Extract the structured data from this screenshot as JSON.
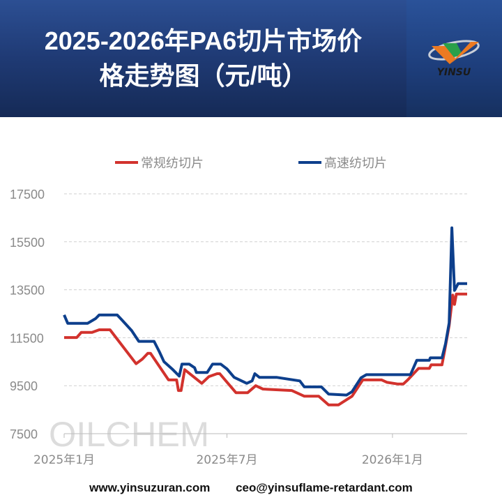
{
  "header": {
    "title_line1": "2025-2026年PA6切片市场价",
    "title_line2": "格走势图（元/吨）",
    "logo_text": "YINSU",
    "watermark_text": "OILCHEM"
  },
  "footer": {
    "website": "www.yinsuzuran.com",
    "email": "ceo@yinsuflame-retardant.com"
  },
  "chart_data": {
    "type": "line",
    "title": "",
    "xlabel": "",
    "ylabel": "",
    "ylim": [
      7500,
      17500
    ],
    "yticks": [
      "7500",
      "9500",
      "11500",
      "13500",
      "15500",
      "17500"
    ],
    "xlim": [
      "2025-01-01",
      "2026-03-25"
    ],
    "xticks": [
      {
        "date": "2025-01-01",
        "label": "2025年1月"
      },
      {
        "date": "2025-07-01",
        "label": "2025年7月"
      },
      {
        "date": "2026-01-01",
        "label": "2026年1月"
      }
    ],
    "grid": "horizontal dashed",
    "legend_position": "top",
    "series": [
      {
        "name": "常规纺切片",
        "color": "#d2322d",
        "points": [
          [
            "2025-01-01",
            11510
          ],
          [
            "2025-01-15",
            11510
          ],
          [
            "2025-01-20",
            11720
          ],
          [
            "2025-02-01",
            11720
          ],
          [
            "2025-02-09",
            11830
          ],
          [
            "2025-02-21",
            11830
          ],
          [
            "2025-03-22",
            10415
          ],
          [
            "2025-03-29",
            10610
          ],
          [
            "2025-04-04",
            10850
          ],
          [
            "2025-04-07",
            10850
          ],
          [
            "2025-04-27",
            9740
          ],
          [
            "2025-05-06",
            9740
          ],
          [
            "2025-05-08",
            9300
          ],
          [
            "2025-05-11",
            9300
          ],
          [
            "2025-05-15",
            10170
          ],
          [
            "2025-06-03",
            9600
          ],
          [
            "2025-06-11",
            9880
          ],
          [
            "2025-06-20",
            10000
          ],
          [
            "2025-06-23",
            10000
          ],
          [
            "2025-07-11",
            9210
          ],
          [
            "2025-07-24",
            9210
          ],
          [
            "2025-08-02",
            9500
          ],
          [
            "2025-08-10",
            9360
          ],
          [
            "2025-09-11",
            9300
          ],
          [
            "2025-09-25",
            9060
          ],
          [
            "2025-10-11",
            9060
          ],
          [
            "2025-10-22",
            8700
          ],
          [
            "2025-11-02",
            8700
          ],
          [
            "2025-11-17",
            9060
          ],
          [
            "2025-11-29",
            9740
          ],
          [
            "2025-12-20",
            9740
          ],
          [
            "2025-12-26",
            9640
          ],
          [
            "2026-01-07",
            9570
          ],
          [
            "2026-01-13",
            9570
          ],
          [
            "2026-01-18",
            9740
          ],
          [
            "2026-01-30",
            10220
          ],
          [
            "2026-02-11",
            10220
          ],
          [
            "2026-02-13",
            10370
          ],
          [
            "2026-02-25",
            10370
          ],
          [
            "2026-02-28",
            10950
          ],
          [
            "2026-03-05",
            12010
          ],
          [
            "2026-03-09",
            13280
          ],
          [
            "2026-03-11",
            12890
          ],
          [
            "2026-03-13",
            13320
          ],
          [
            "2026-03-25",
            13320
          ]
        ]
      },
      {
        "name": "高速纺切片",
        "color": "#0d3f8c",
        "points": [
          [
            "2025-01-01",
            12450
          ],
          [
            "2025-01-05",
            12100
          ],
          [
            "2025-01-27",
            12100
          ],
          [
            "2025-02-05",
            12300
          ],
          [
            "2025-02-09",
            12450
          ],
          [
            "2025-03-01",
            12450
          ],
          [
            "2025-03-06",
            12250
          ],
          [
            "2025-03-17",
            11800
          ],
          [
            "2025-03-25",
            11350
          ],
          [
            "2025-04-11",
            11350
          ],
          [
            "2025-04-17",
            10900
          ],
          [
            "2025-04-22",
            10500
          ],
          [
            "2025-05-01",
            10200
          ],
          [
            "2025-05-09",
            9900
          ],
          [
            "2025-05-12",
            10400
          ],
          [
            "2025-05-20",
            10400
          ],
          [
            "2025-05-26",
            10250
          ],
          [
            "2025-05-28",
            10050
          ],
          [
            "2025-06-09",
            10050
          ],
          [
            "2025-06-15",
            10400
          ],
          [
            "2025-06-24",
            10400
          ],
          [
            "2025-07-01",
            10200
          ],
          [
            "2025-07-09",
            9850
          ],
          [
            "2025-07-23",
            9600
          ],
          [
            "2025-07-29",
            9700
          ],
          [
            "2025-08-01",
            10000
          ],
          [
            "2025-08-06",
            9850
          ],
          [
            "2025-08-25",
            9850
          ],
          [
            "2025-09-20",
            9700
          ],
          [
            "2025-09-25",
            9450
          ],
          [
            "2025-10-14",
            9450
          ],
          [
            "2025-10-22",
            9150
          ],
          [
            "2025-11-11",
            9110
          ],
          [
            "2025-11-17",
            9250
          ],
          [
            "2025-11-27",
            9830
          ],
          [
            "2025-12-03",
            9960
          ],
          [
            "2026-01-21",
            9960
          ],
          [
            "2026-01-28",
            10560
          ],
          [
            "2026-02-11",
            10560
          ],
          [
            "2026-02-12",
            10660
          ],
          [
            "2026-02-25",
            10660
          ],
          [
            "2026-03-01",
            11250
          ],
          [
            "2026-03-05",
            12120
          ],
          [
            "2026-03-08",
            16080
          ],
          [
            "2026-03-11",
            13470
          ],
          [
            "2026-03-15",
            13760
          ],
          [
            "2026-03-25",
            13760
          ]
        ]
      }
    ]
  }
}
